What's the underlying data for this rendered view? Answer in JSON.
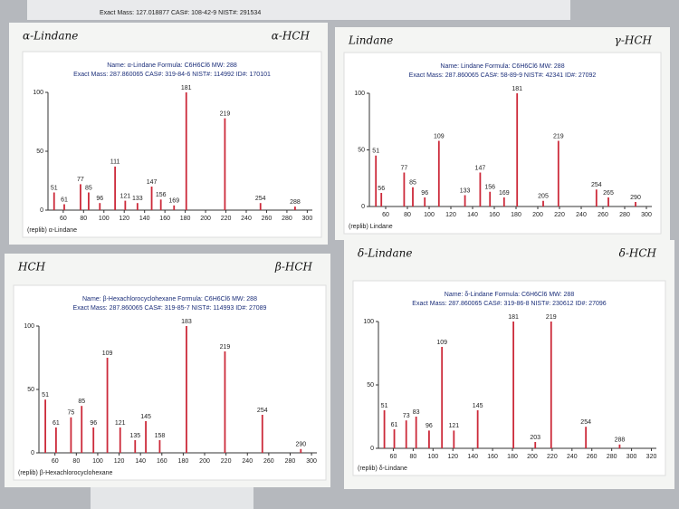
{
  "top_fragment": "Exact Mass: 127.018877 CAS#: 108-42-9 NIST#: 291534",
  "chart_data": [
    {
      "type": "bar",
      "handwriting": [
        "α-Lindane",
        "α-HCH"
      ],
      "header": [
        "Name: α-Lindane  Formula: C6H6Cl6  MW: 288",
        "Exact Mass: 287.860065  CAS#: 319-84-6  NIST#: 114992  ID#: 170101"
      ],
      "footer": "(replib) α-Lindane",
      "color": "#cc2a3a",
      "x": [
        51,
        61,
        77,
        85,
        96,
        111,
        121,
        133,
        147,
        156,
        169,
        181,
        219,
        254,
        288
      ],
      "values": [
        15,
        5,
        22,
        15,
        6,
        37,
        8,
        6,
        20,
        9,
        4,
        100,
        78,
        6,
        3
      ],
      "xlim": [
        45,
        305
      ],
      "xticks": [
        60,
        80,
        100,
        120,
        140,
        160,
        180,
        200,
        220,
        240,
        260,
        280,
        300
      ],
      "ylim": [
        0,
        100
      ],
      "yticks": [
        0,
        50,
        100
      ]
    },
    {
      "type": "bar",
      "handwriting": [
        "Lindane",
        "γ-HCH"
      ],
      "header": [
        "Name: Lindane  Formula: C6H6Cl6  MW: 288",
        "Exact Mass: 287.860065  CAS#: 58-89-9  NIST#: 42341  ID#: 27092"
      ],
      "footer": "(replib) Lindane",
      "color": "#cc2a3a",
      "x": [
        51,
        56,
        77,
        85,
        96,
        109,
        133,
        147,
        156,
        169,
        181,
        205,
        219,
        254,
        265,
        290
      ],
      "values": [
        45,
        12,
        30,
        17,
        8,
        58,
        10,
        30,
        13,
        8,
        100,
        5,
        58,
        15,
        8,
        4
      ],
      "xlim": [
        45,
        305
      ],
      "xticks": [
        60,
        80,
        100,
        120,
        140,
        160,
        180,
        200,
        220,
        240,
        260,
        280,
        300
      ],
      "ylim": [
        0,
        100
      ],
      "yticks": [
        0,
        50,
        100
      ]
    },
    {
      "type": "bar",
      "handwriting": [
        "HCH",
        "β-HCH"
      ],
      "header": [
        "Name: β-Hexachlorocyclohexane  Formula: C6H6Cl6  MW: 288",
        "Exact Mass: 287.860065  CAS#: 319-85-7  NIST#: 114993  ID#: 27089"
      ],
      "footer": "(replib) β-Hexachlorocyclohexane",
      "color": "#cc2a3a",
      "x": [
        51,
        61,
        75,
        85,
        96,
        109,
        121,
        135,
        145,
        158,
        183,
        219,
        254,
        290
      ],
      "values": [
        42,
        20,
        28,
        37,
        20,
        75,
        20,
        10,
        25,
        10,
        100,
        80,
        30,
        3
      ],
      "xlim": [
        45,
        305
      ],
      "xticks": [
        60,
        80,
        100,
        120,
        140,
        160,
        180,
        200,
        220,
        240,
        260,
        280,
        300
      ],
      "ylim": [
        0,
        100
      ],
      "yticks": [
        0,
        50,
        100
      ]
    },
    {
      "type": "bar",
      "handwriting": [
        "δ-Lindane",
        "δ-HCH"
      ],
      "header": [
        "Name: δ-Lindane  Formula: C6H6Cl6  MW: 288",
        "Exact Mass: 287.860065  CAS#: 319-86-8  NIST#: 230612  ID#: 27096"
      ],
      "footer": "(replib) δ-Lindane",
      "color": "#cc2a3a",
      "x": [
        51,
        61,
        73,
        83,
        96,
        109,
        121,
        145,
        181,
        203,
        219,
        254,
        288
      ],
      "values": [
        30,
        15,
        22,
        25,
        14,
        80,
        14,
        30,
        100,
        5,
        100,
        17,
        3
      ],
      "xlim": [
        45,
        325
      ],
      "xticks": [
        60,
        80,
        100,
        120,
        140,
        160,
        180,
        200,
        220,
        240,
        260,
        280,
        300,
        320
      ],
      "ylim": [
        0,
        100
      ],
      "yticks": [
        0,
        50,
        100
      ]
    }
  ]
}
